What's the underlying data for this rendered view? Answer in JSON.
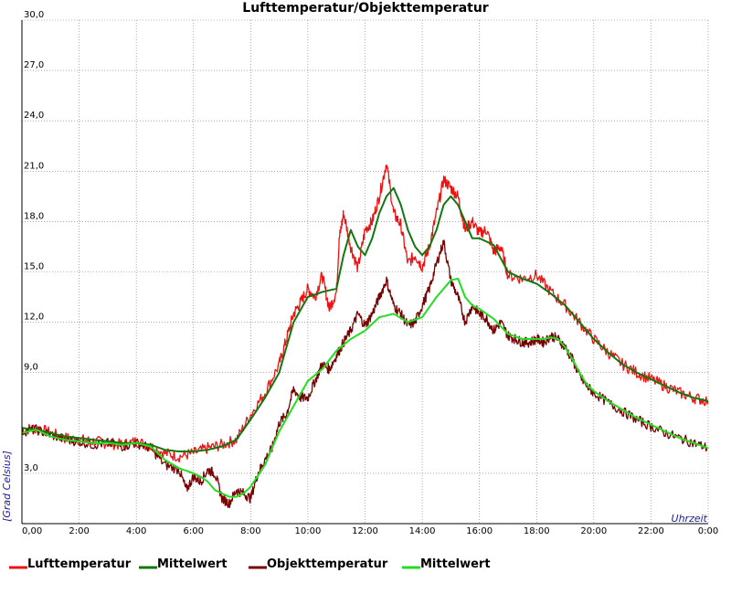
{
  "chart_data": {
    "type": "line",
    "title": "Lufttemperatur/Objekttemperatur",
    "xlabel": "Uhrzeit",
    "ylabel": "[Grad Celsius]",
    "xlim": [
      0,
      24
    ],
    "ylim": [
      0,
      30
    ],
    "grid": true,
    "legend_position": "bottom",
    "y_ticks": [
      {
        "value": 3,
        "label": "3,0"
      },
      {
        "value": 9,
        "label": "9,0"
      },
      {
        "value": 12,
        "label": "12,0"
      },
      {
        "value": 15,
        "label": "15,0"
      },
      {
        "value": 18,
        "label": "18,0"
      },
      {
        "value": 21,
        "label": "21,0"
      },
      {
        "value": 24,
        "label": "24,0"
      },
      {
        "value": 27,
        "label": "27,0"
      },
      {
        "value": 30,
        "label": "30,0"
      }
    ],
    "x_ticks": [
      {
        "value": 0,
        "label": "0,00"
      },
      {
        "value": 2,
        "label": "2:00"
      },
      {
        "value": 4,
        "label": "4:00"
      },
      {
        "value": 6,
        "label": "6:00"
      },
      {
        "value": 8,
        "label": "8:00"
      },
      {
        "value": 10,
        "label": "10:00"
      },
      {
        "value": 12,
        "label": "12:00"
      },
      {
        "value": 14,
        "label": "14:00"
      },
      {
        "value": 16,
        "label": "16:00"
      },
      {
        "value": 18,
        "label": "18:00"
      },
      {
        "value": 20,
        "label": "20:00"
      },
      {
        "value": 22,
        "label": "22:00"
      },
      {
        "value": 24,
        "label": "0:00"
      }
    ],
    "series": [
      {
        "name": "Lufttemperatur",
        "color": "#ee1111",
        "x": [
          0,
          0.5,
          1,
          1.5,
          2,
          2.5,
          3,
          3.5,
          4,
          4.5,
          5,
          5.5,
          6,
          6.5,
          7,
          7.5,
          8,
          8.5,
          9,
          9.25,
          9.5,
          9.75,
          10,
          10.25,
          10.5,
          10.75,
          11,
          11.1,
          11.25,
          11.5,
          11.75,
          12,
          12.25,
          12.5,
          12.75,
          13,
          13.25,
          13.5,
          13.75,
          14,
          14.25,
          14.5,
          14.75,
          15,
          15.25,
          15.5,
          15.75,
          16,
          16.25,
          16.5,
          16.75,
          17,
          17.5,
          18,
          18.5,
          19,
          19.5,
          20,
          20.5,
          21,
          21.5,
          22,
          22.5,
          23,
          23.5,
          24
        ],
        "y": [
          5.6,
          5.7,
          5.4,
          5.1,
          5.0,
          4.9,
          4.8,
          4.7,
          4.9,
          4.6,
          4.2,
          4.0,
          4.2,
          4.5,
          4.7,
          5.0,
          6.5,
          7.8,
          9.5,
          11.0,
          12.5,
          13.2,
          14.0,
          13.5,
          14.8,
          12.8,
          13.8,
          17.0,
          18.5,
          16.5,
          15.2,
          17.5,
          18.0,
          19.5,
          21.5,
          18.5,
          17.8,
          15.5,
          16.0,
          15.3,
          16.5,
          18.5,
          20.5,
          20.0,
          19.5,
          17.5,
          18.0,
          17.3,
          17.5,
          16.2,
          16.5,
          14.8,
          14.6,
          14.8,
          13.8,
          13.0,
          12.0,
          11.0,
          10.2,
          9.5,
          9.0,
          8.6,
          8.2,
          7.8,
          7.5,
          7.3
        ]
      },
      {
        "name": "Mittelwert",
        "color": "#117711",
        "x": [
          0,
          0.5,
          1,
          1.5,
          2,
          2.5,
          3,
          3.5,
          4,
          4.5,
          5,
          5.5,
          6,
          6.5,
          7,
          7.5,
          8,
          8.5,
          9,
          9.5,
          10,
          10.5,
          11,
          11.25,
          11.5,
          11.75,
          12,
          12.25,
          12.5,
          12.75,
          13,
          13.25,
          13.5,
          13.75,
          14,
          14.25,
          14.5,
          14.75,
          15,
          15.25,
          15.5,
          15.75,
          16,
          16.5,
          17,
          17.5,
          18,
          18.5,
          19,
          19.5,
          20,
          20.5,
          21,
          21.5,
          22,
          22.5,
          23,
          23.5,
          24
        ],
        "y": [
          5.7,
          5.6,
          5.4,
          5.2,
          5.1,
          5.0,
          4.9,
          4.8,
          4.8,
          4.7,
          4.4,
          4.3,
          4.3,
          4.4,
          4.6,
          5.0,
          6.2,
          7.5,
          9.0,
          12.0,
          13.5,
          13.8,
          14.0,
          16.0,
          17.5,
          16.5,
          16.0,
          17.0,
          18.5,
          19.5,
          20.0,
          19.0,
          17.5,
          16.5,
          16.0,
          16.5,
          17.5,
          19.0,
          19.5,
          19.0,
          18.0,
          17.0,
          17.0,
          16.6,
          15.0,
          14.6,
          14.3,
          13.7,
          13.0,
          12.0,
          11.0,
          10.2,
          9.5,
          9.0,
          8.6,
          8.2,
          7.8,
          7.5,
          7.3
        ]
      },
      {
        "name": "Objekttemperatur",
        "color": "#770000",
        "x": [
          0,
          0.5,
          1,
          1.5,
          2,
          2.5,
          3,
          3.5,
          4,
          4.5,
          5,
          5.5,
          5.75,
          6,
          6.25,
          6.5,
          6.75,
          7,
          7.25,
          7.5,
          7.75,
          8,
          8.25,
          8.5,
          8.75,
          9,
          9.25,
          9.5,
          9.75,
          10,
          10.25,
          10.5,
          10.75,
          11,
          11.25,
          11.5,
          11.75,
          12,
          12.25,
          12.5,
          12.75,
          13,
          13.25,
          13.5,
          13.75,
          14,
          14.25,
          14.5,
          14.75,
          15,
          15.25,
          15.5,
          15.75,
          16,
          16.25,
          16.5,
          16.75,
          17,
          17.25,
          17.5,
          17.75,
          18,
          18.25,
          18.5,
          18.75,
          19,
          19.25,
          19.5,
          19.75,
          20,
          20.5,
          21,
          21.5,
          22,
          22.5,
          23,
          23.5,
          24
        ],
        "y": [
          5.5,
          5.6,
          5.3,
          5.0,
          4.9,
          4.7,
          4.8,
          4.6,
          4.8,
          4.5,
          3.5,
          3.2,
          2.0,
          2.8,
          2.5,
          3.2,
          3.0,
          1.5,
          1.2,
          2.0,
          1.8,
          1.5,
          3.0,
          3.8,
          4.5,
          6.0,
          6.5,
          8.0,
          7.5,
          7.5,
          8.5,
          9.5,
          9.2,
          10.0,
          10.8,
          11.5,
          12.5,
          11.8,
          12.5,
          13.5,
          14.5,
          13.0,
          12.5,
          11.8,
          12.0,
          13.0,
          14.0,
          15.5,
          16.8,
          14.5,
          13.5,
          12.0,
          13.0,
          12.5,
          12.2,
          11.5,
          12.0,
          11.2,
          11.0,
          10.8,
          10.8,
          11.0,
          10.8,
          11.2,
          11.0,
          10.5,
          9.8,
          8.8,
          8.2,
          7.8,
          7.2,
          6.7,
          6.2,
          5.8,
          5.4,
          5.1,
          4.8,
          4.5
        ]
      },
      {
        "name": "Mittelwert",
        "color": "#22dd22",
        "x": [
          0,
          0.5,
          1,
          1.5,
          2,
          2.5,
          3,
          3.5,
          4,
          4.5,
          5,
          5.5,
          6,
          6.25,
          6.5,
          6.75,
          7,
          7.25,
          7.5,
          7.75,
          8,
          8.5,
          9,
          9.5,
          10,
          10.5,
          11,
          11.5,
          12,
          12.5,
          13,
          13.5,
          14,
          14.5,
          15,
          15.25,
          15.5,
          15.75,
          16,
          16.5,
          17,
          17.5,
          18,
          18.25,
          18.5,
          18.75,
          19,
          19.25,
          19.5,
          19.75,
          20,
          20.5,
          21,
          21.5,
          22,
          22.5,
          23,
          23.5,
          24
        ],
        "y": [
          5.4,
          5.6,
          5.2,
          5.0,
          4.9,
          4.8,
          4.8,
          4.7,
          4.8,
          4.6,
          3.8,
          3.3,
          3.0,
          2.8,
          2.5,
          2.0,
          1.8,
          1.6,
          1.6,
          1.8,
          2.2,
          3.5,
          5.5,
          7.0,
          8.5,
          9.2,
          10.3,
          11.0,
          11.5,
          12.3,
          12.5,
          12.0,
          12.3,
          13.5,
          14.5,
          14.6,
          13.5,
          13.0,
          12.8,
          12.2,
          11.3,
          11.0,
          11.0,
          11.0,
          11.1,
          11.0,
          10.5,
          9.8,
          9.0,
          8.3,
          7.9,
          7.3,
          6.8,
          6.3,
          5.9,
          5.5,
          5.1,
          4.8,
          4.5
        ]
      }
    ]
  }
}
